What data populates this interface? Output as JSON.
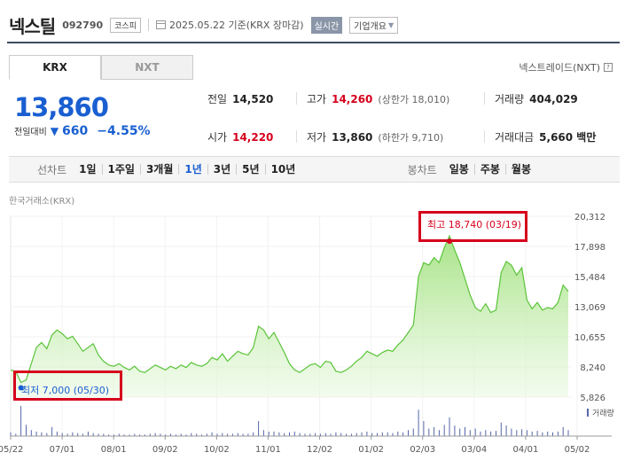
{
  "header": {
    "name": "넥스틸",
    "code": "092790",
    "market": "코스피",
    "date_info": "2025.05.22 기준(KRX 장마감)",
    "realtime": "실시간",
    "corp_info": "기업개요"
  },
  "tabs": [
    {
      "label": "KRX"
    },
    {
      "label": "NXT"
    }
  ],
  "nxt_link": "넥스트레이드(NXT)",
  "price": {
    "current": "13,860",
    "change_label": "전일대비",
    "change_value": "660",
    "change_pct": "−4.55%"
  },
  "stats": {
    "prev_close": {
      "label": "전일",
      "value": "14,520"
    },
    "high": {
      "label": "고가",
      "value": "14,260",
      "sub": "(상한가 18,010)"
    },
    "volume": {
      "label": "거래량",
      "value": "404,029"
    },
    "open": {
      "label": "시가",
      "value": "14,220"
    },
    "low": {
      "label": "저가",
      "value": "13,860",
      "sub": "(하한가 9,710)"
    },
    "amount": {
      "label": "거래대금",
      "value": "5,660 백만"
    }
  },
  "period_bar": {
    "line_label": "선차트",
    "line_periods": [
      "1일",
      "1주일",
      "3개월",
      "1년",
      "3년",
      "5년",
      "10년"
    ],
    "active": "1년",
    "candle_label": "봉차트",
    "candle_periods": [
      "일봉",
      "주봉",
      "월봉"
    ]
  },
  "chart_data": {
    "type": "area",
    "exchange_label": "한국거래소(KRX)",
    "y_ticks": [
      "20,312",
      "17,898",
      "15,484",
      "13,069",
      "10,655",
      "8,240",
      "5,826"
    ],
    "x_ticks": [
      "05/22",
      "07/01",
      "08/01",
      "09/02",
      "10/02",
      "11/01",
      "12/02",
      "01/02",
      "02/03",
      "03/04",
      "04/01",
      "05/02"
    ],
    "ylim": [
      5826,
      20312
    ],
    "high_label": "최고 18,740 (03/19)",
    "low_label": "최저 7,000 (05/30)",
    "volume_label": "거래량",
    "prices": [
      8000,
      7900,
      7000,
      7200,
      8500,
      9800,
      10200,
      9700,
      10800,
      11200,
      10900,
      10500,
      10700,
      10100,
      9500,
      9800,
      10100,
      9200,
      8700,
      8400,
      8300,
      8500,
      8200,
      8000,
      8300,
      7900,
      7800,
      8100,
      8400,
      8200,
      8000,
      8300,
      8100,
      8400,
      8200,
      8600,
      8400,
      8300,
      8500,
      9000,
      8800,
      9300,
      8700,
      9100,
      9500,
      9300,
      9200,
      9800,
      11500,
      11200,
      10500,
      11000,
      10200,
      9400,
      8500,
      8000,
      7800,
      8100,
      8400,
      8500,
      8200,
      8700,
      8600,
      7900,
      7800,
      8000,
      8300,
      8700,
      9000,
      9500,
      9300,
      9100,
      9400,
      9600,
      9500,
      10000,
      10400,
      11000,
      11600,
      15500,
      16600,
      16400,
      17000,
      16600,
      17800,
      18740,
      17600,
      16600,
      15300,
      14000,
      13000,
      12700,
      13300,
      12600,
      12800,
      15800,
      16700,
      16400,
      15600,
      16200,
      13600,
      12900,
      13400,
      12800,
      13000,
      12900,
      13400,
      14800,
      14300
    ],
    "volumes": [
      5,
      3,
      40,
      15,
      8,
      6,
      5,
      4,
      12,
      6,
      4,
      3,
      5,
      4,
      3,
      6,
      4,
      3,
      3,
      2,
      2,
      3,
      2,
      2,
      3,
      2,
      2,
      3,
      4,
      3,
      2,
      3,
      2,
      3,
      2,
      4,
      3,
      2,
      3,
      5,
      3,
      4,
      3,
      3,
      4,
      3,
      3,
      5,
      20,
      8,
      6,
      6,
      5,
      4,
      5,
      6,
      4,
      3,
      3,
      4,
      3,
      4,
      3,
      5,
      4,
      3,
      3,
      4,
      5,
      6,
      4,
      4,
      5,
      5,
      4,
      6,
      5,
      8,
      10,
      35,
      20,
      10,
      12,
      8,
      15,
      25,
      14,
      10,
      12,
      8,
      10,
      6,
      8,
      6,
      7,
      18,
      14,
      10,
      8,
      9,
      8,
      6,
      7,
      5,
      6,
      5,
      6,
      12,
      8
    ]
  }
}
